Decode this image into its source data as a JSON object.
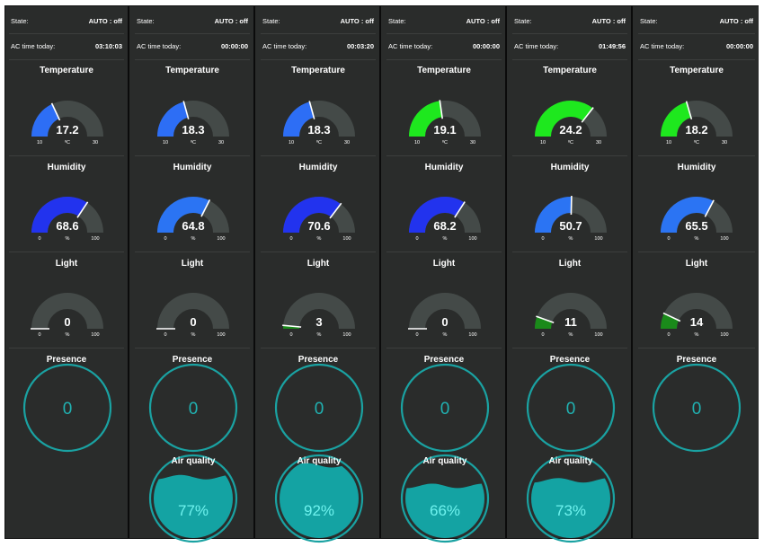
{
  "labels": {
    "state": "State:",
    "ac_time": "AC time today:",
    "temperature": "Temperature",
    "humidity": "Humidity",
    "light": "Light",
    "presence": "Presence",
    "air_quality": "Air quality"
  },
  "units": {
    "temperature": "ºC",
    "humidity": "%",
    "light": "%"
  },
  "ranges": {
    "temperature": {
      "min": 10,
      "max": 30
    },
    "humidity": {
      "min": 0,
      "max": 100
    },
    "light": {
      "min": 0,
      "max": 100
    }
  },
  "colors": {
    "panel_bg": "#2a2c2b",
    "gauge_track": "#444a48",
    "presence_ring": "#1aa2a2",
    "presence_text": "#20b2b2",
    "air_fill": "#14a3a3",
    "air_text": "#6ff2ee",
    "needle": "#ffffff"
  },
  "rooms": [
    {
      "state": "AUTO : off",
      "ac_time": "03:10:03",
      "temperature": {
        "value": "17.2",
        "color": "#2d6ef5"
      },
      "humidity": {
        "value": "68.6",
        "color": "#2233ee"
      },
      "light": {
        "value": "0",
        "color": "#1a8a1a"
      },
      "presence": "0",
      "air_quality": null
    },
    {
      "state": "AUTO : off",
      "ac_time": "00:00:00",
      "temperature": {
        "value": "18.3",
        "color": "#2d6ef5"
      },
      "humidity": {
        "value": "64.8",
        "color": "#2b74f3"
      },
      "light": {
        "value": "0",
        "color": "#1a8a1a"
      },
      "presence": "0",
      "air_quality": "77%"
    },
    {
      "state": "AUTO : off",
      "ac_time": "00:03:20",
      "temperature": {
        "value": "18.3",
        "color": "#2d6ef5"
      },
      "humidity": {
        "value": "70.6",
        "color": "#2233ee"
      },
      "light": {
        "value": "3",
        "color": "#1a8a1a"
      },
      "presence": "0",
      "air_quality": "92%"
    },
    {
      "state": "AUTO : off",
      "ac_time": "00:00:00",
      "temperature": {
        "value": "19.1",
        "color": "#1ee81e"
      },
      "humidity": {
        "value": "68.2",
        "color": "#2233ee"
      },
      "light": {
        "value": "0",
        "color": "#1a8a1a"
      },
      "presence": "0",
      "air_quality": "66%"
    },
    {
      "state": "AUTO : off",
      "ac_time": "01:49:56",
      "temperature": {
        "value": "24.2",
        "color": "#1ee81e"
      },
      "humidity": {
        "value": "50.7",
        "color": "#2b74f3"
      },
      "light": {
        "value": "11",
        "color": "#1a8a1a"
      },
      "presence": "0",
      "air_quality": "73%"
    },
    {
      "state": "AUTO : off",
      "ac_time": "00:00:00",
      "temperature": {
        "value": "18.2",
        "color": "#1ee81e"
      },
      "humidity": {
        "value": "65.5",
        "color": "#2b74f3"
      },
      "light": {
        "value": "14",
        "color": "#1a8a1a"
      },
      "presence": "0",
      "air_quality": null
    }
  ]
}
